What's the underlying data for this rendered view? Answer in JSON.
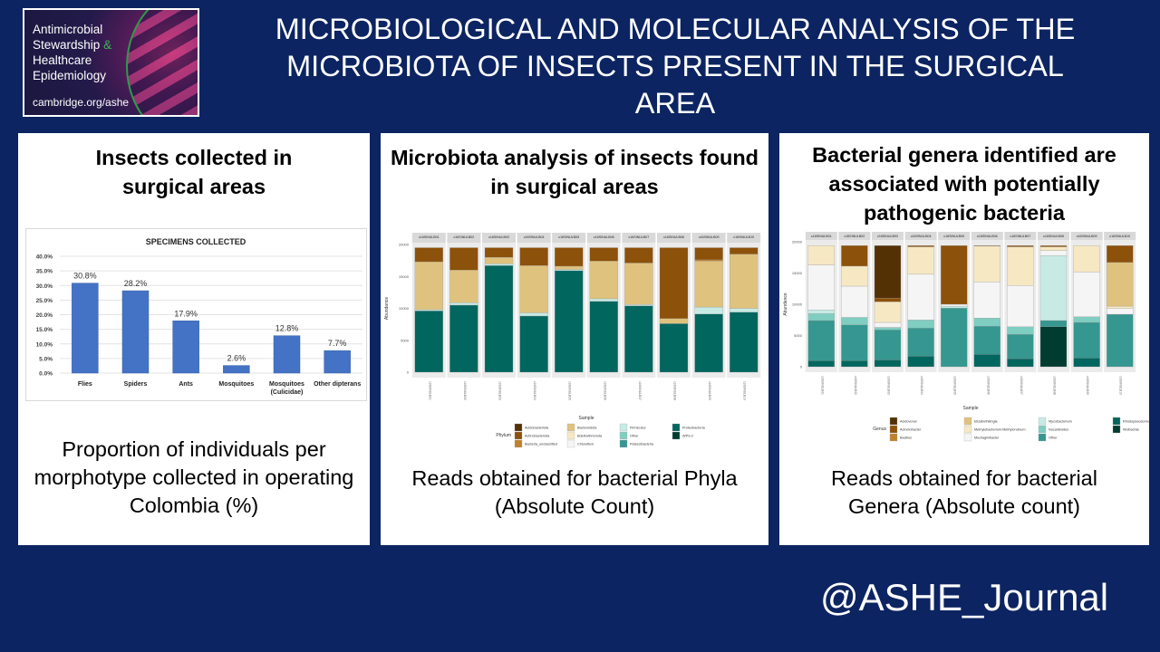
{
  "logo": {
    "lines": [
      "Antimicrobial",
      "Stewardship",
      "&",
      "Healthcare",
      "Epidemiology"
    ],
    "url": "cambridge.org/ashe"
  },
  "title": "MICROBIOLOGICAL AND MOLECULAR ANALYSIS OF THE MICROBIOTA OF INSECTS PRESENT IN THE SURGICAL AREA",
  "panels": [
    {
      "title": "Insects collected in surgical areas",
      "caption": "Proportion of individuals per morphotype collected in operating Colombia (%)"
    },
    {
      "title": "Microbiota analysis of insects found in surgical areas",
      "caption": "Reads obtained for bacterial Phyla (Absolute Count)"
    },
    {
      "title": "Bacterial genera identified are associated with potentially pathogenic bacteria",
      "caption": "Reads obtained for bacterial Genera (Absolute count)"
    }
  ],
  "handle": "@ASHE_Journal",
  "colors": {
    "background": "#0c2461",
    "bar": "#4472c4"
  },
  "chart_data": [
    {
      "type": "bar",
      "title": "SPECIMENS COLLECTED",
      "categories": [
        "Flies",
        "Spiders",
        "Ants",
        "Mosquitoes",
        "Mosquitoes (Culicidae)",
        "Other dipterans"
      ],
      "values": [
        30.8,
        28.2,
        17.9,
        2.6,
        12.8,
        7.7
      ],
      "data_labels": [
        "30.8%",
        "28.2%",
        "17.9%",
        "2.6%",
        "12.8%",
        "7.7%"
      ],
      "yticks": [
        "0.0%",
        "5.0%",
        "10.0%",
        "15.0%",
        "20.0%",
        "25.0%",
        "30.0%",
        "35.0%",
        "40.0%"
      ],
      "ylim": [
        0,
        40
      ],
      "grid": true
    },
    {
      "type": "bar",
      "stacked": true,
      "xlabel": "Sample",
      "ylabel": "Abundance",
      "ylim": [
        0,
        20000
      ],
      "yticks": [
        0,
        5000,
        10000,
        15000,
        20000
      ],
      "legend_title": "Phylum",
      "legend_position": "bottom",
      "categories": [
        "c16SINULB01",
        "c16SINULB02",
        "c16SINULB03",
        "c16SINULB04",
        "c16SINULB05",
        "c16SINULB06",
        "c16SINULB07",
        "c16SINULB08",
        "c16SINULB09",
        "c16SINULB10"
      ],
      "series": [
        {
          "name": "Acidobacteriota",
          "color": "#543005",
          "values": [
            0,
            0,
            0,
            0,
            0,
            0,
            0,
            0,
            0,
            0
          ]
        },
        {
          "name": "Actinobacteriota",
          "color": "#8c510a",
          "values": [
            2200,
            3500,
            1500,
            2800,
            2900,
            2100,
            2400,
            11100,
            1900,
            1000
          ]
        },
        {
          "name": "Bacteria_unclassified",
          "color": "#bf812d",
          "values": [
            0,
            0,
            0,
            0,
            0,
            0,
            0,
            0,
            200,
            0
          ]
        },
        {
          "name": "Bacteroidota",
          "color": "#dfc27d",
          "values": [
            7500,
            5100,
            1000,
            7400,
            500,
            5900,
            6500,
            800,
            7200,
            8500
          ]
        },
        {
          "name": "Bdellovibrionota",
          "color": "#f6e8c3",
          "values": [
            0,
            0,
            0,
            0,
            0,
            0,
            0,
            0,
            0,
            0
          ]
        },
        {
          "name": "Chloroflexi",
          "color": "#f5f5f5",
          "values": [
            0,
            0,
            0,
            0,
            0,
            0,
            0,
            0,
            0,
            0
          ]
        },
        {
          "name": "Firmicutes",
          "color": "#c7eae5",
          "values": [
            200,
            400,
            300,
            500,
            200,
            400,
            200,
            0,
            1100,
            600
          ]
        },
        {
          "name": "Other",
          "color": "#80cdc1",
          "values": [
            0,
            0,
            0,
            0,
            0,
            0,
            0,
            0,
            0,
            0
          ]
        },
        {
          "name": "Patescibacteria",
          "color": "#35978f",
          "values": [
            0,
            0,
            0,
            0,
            0,
            0,
            0,
            0,
            0,
            0
          ]
        },
        {
          "name": "Proteobacteria",
          "color": "#01665e",
          "values": [
            9600,
            10500,
            16700,
            8800,
            15900,
            11100,
            10400,
            7600,
            9100,
            9400
          ]
        },
        {
          "name": "WPS-2",
          "color": "#003c30",
          "values": [
            0,
            0,
            0,
            0,
            0,
            0,
            0,
            0,
            0,
            0
          ]
        }
      ]
    },
    {
      "type": "bar",
      "stacked": true,
      "xlabel": "Sample",
      "ylabel": "Abundance",
      "ylim": [
        0,
        20000
      ],
      "yticks": [
        0,
        5000,
        10000,
        15000,
        20000
      ],
      "legend_title": "Genus",
      "legend_position": "bottom",
      "categories": [
        "c16SINULB01",
        "c16SINULB02",
        "c16SINULB03",
        "c16SINULB04",
        "c16SINULB05",
        "c16SINULB06",
        "c16SINULB07",
        "c16SINULB08",
        "c16SINULB09",
        "c16SINULB10"
      ],
      "series": [
        {
          "name": "Acidovorax",
          "color": "#543005",
          "values": [
            0,
            0,
            8400,
            0,
            0,
            0,
            0,
            0,
            0,
            0
          ]
        },
        {
          "name": "Acinetobacter",
          "color": "#8c510a",
          "values": [
            0,
            3300,
            600,
            200,
            9400,
            100,
            200,
            200,
            0,
            2700
          ]
        },
        {
          "name": "Bacillus",
          "color": "#bf812d",
          "values": [
            0,
            0,
            0,
            0,
            0,
            0,
            0,
            0,
            0,
            0
          ]
        },
        {
          "name": "Elizabethkingia",
          "color": "#dfc27d",
          "values": [
            0,
            0,
            0,
            0,
            0,
            0,
            0,
            0,
            0,
            7000
          ]
        },
        {
          "name": "Methylobacterium-Methylorubrum",
          "color": "#f6e8c3",
          "values": [
            3100,
            3200,
            3300,
            4400,
            0,
            5700,
            6200,
            600,
            4200,
            400
          ]
        },
        {
          "name": "Mucilaginibacter",
          "color": "#f5f5f5",
          "values": [
            7200,
            5000,
            800,
            7300,
            300,
            5800,
            6600,
            800,
            7200,
            900
          ]
        },
        {
          "name": "Mycobacterium",
          "color": "#c7eae5",
          "values": [
            600,
            0,
            0,
            0,
            300,
            0,
            0,
            10400,
            0,
            0
          ]
        },
        {
          "name": "Nocardioides",
          "color": "#80cdc1",
          "values": [
            1100,
            1200,
            400,
            1300,
            0,
            1300,
            1200,
            0,
            900,
            0
          ]
        },
        {
          "name": "Other",
          "color": "#35978f",
          "values": [
            6400,
            5700,
            4800,
            4500,
            9400,
            4500,
            3900,
            1000,
            5700,
            8400
          ]
        },
        {
          "name": "Rhodopseudomonas",
          "color": "#01665e",
          "values": [
            1000,
            1000,
            1100,
            1700,
            0,
            2000,
            1300,
            0,
            1400,
            0
          ]
        },
        {
          "name": "Wolbachia",
          "color": "#003c30",
          "values": [
            0,
            0,
            0,
            0,
            0,
            0,
            0,
            6400,
            0,
            0
          ]
        }
      ]
    }
  ]
}
